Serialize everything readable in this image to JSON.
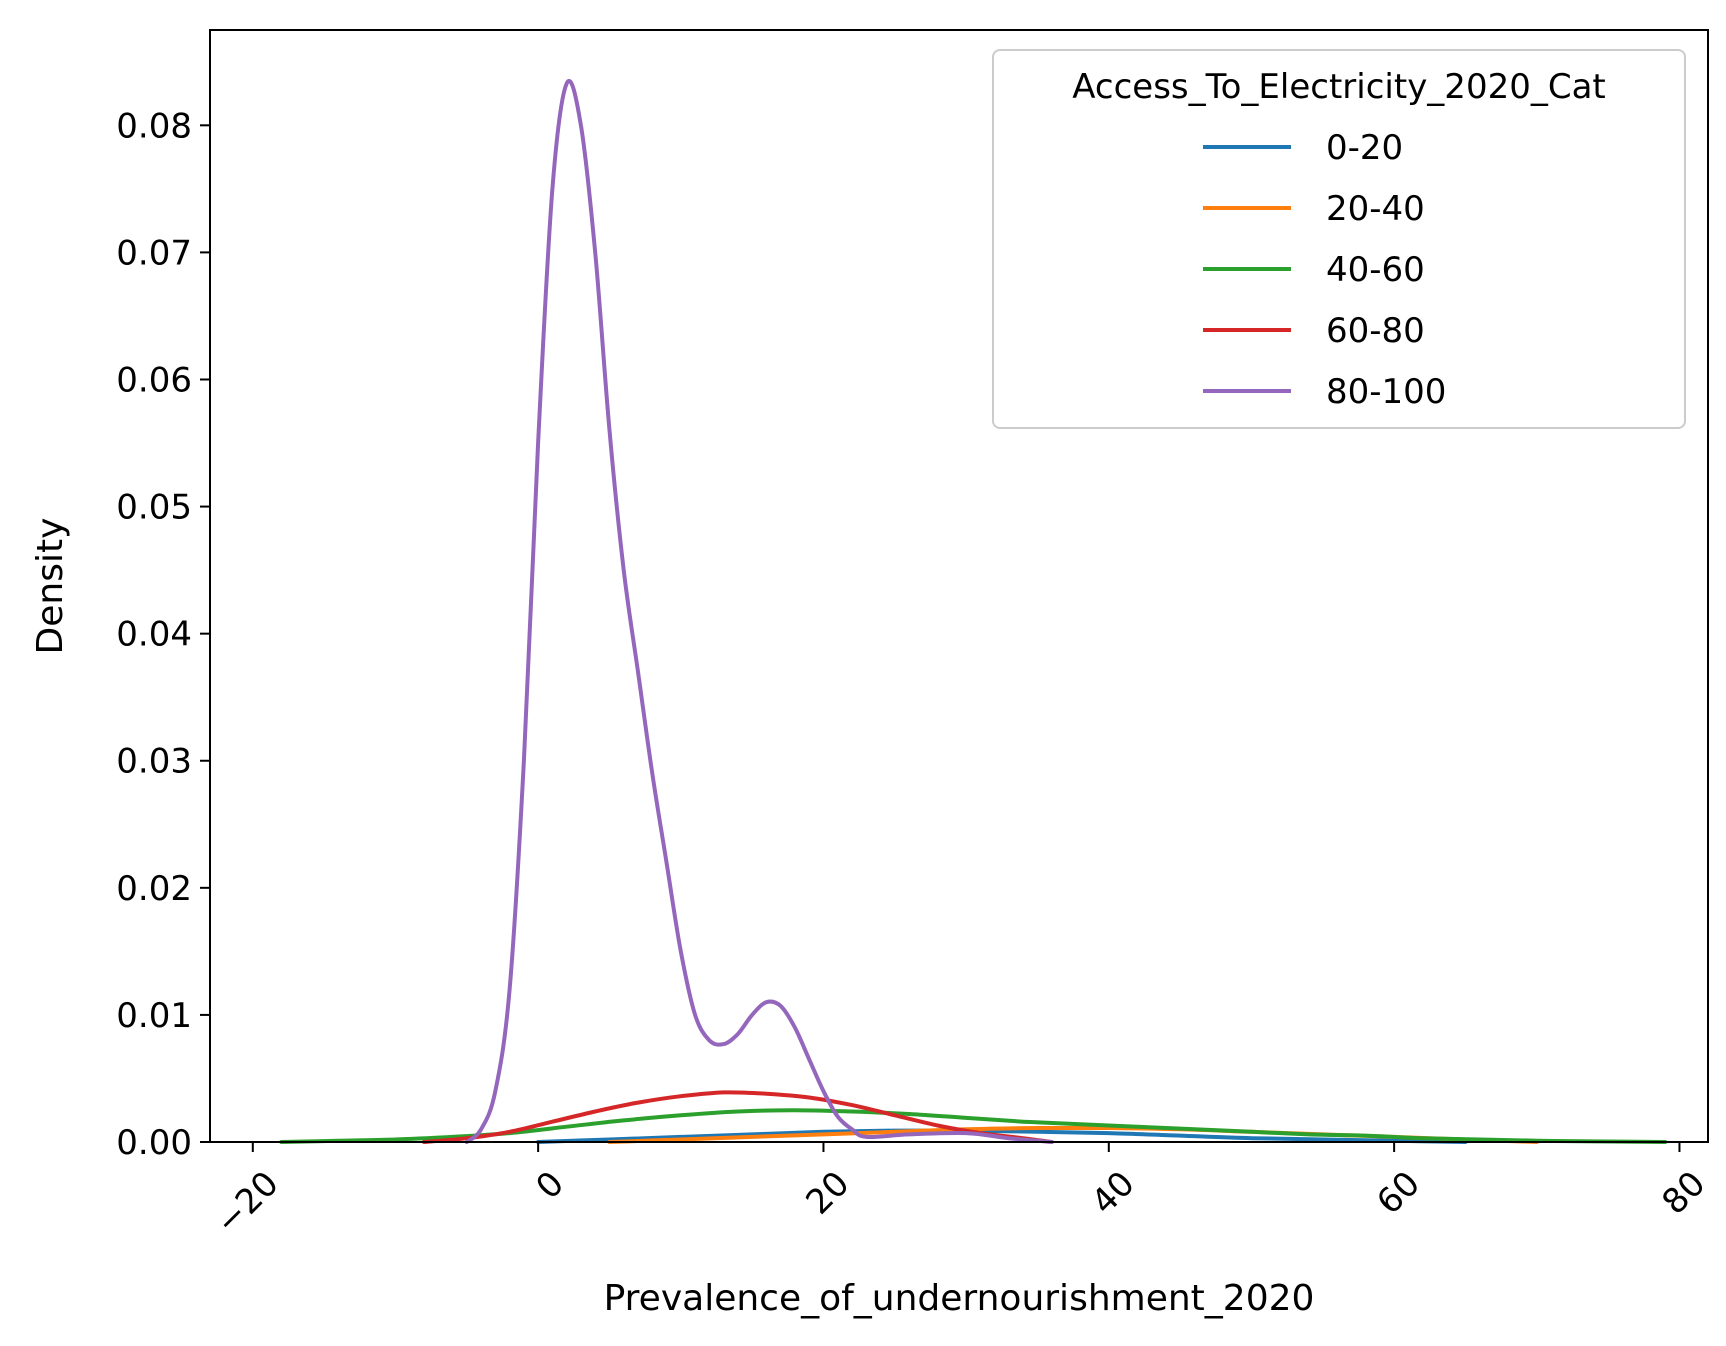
{
  "chart_data": {
    "type": "line",
    "subtype": "kde",
    "title": "",
    "xlabel": "Prevalence_of_undernourishment_2020",
    "ylabel": "Density",
    "xlim": [
      -23,
      82
    ],
    "ylim": [
      0,
      0.0875
    ],
    "xticks": [
      -20,
      0,
      20,
      40,
      60,
      80
    ],
    "xtick_labels": [
      "−20",
      "0",
      "20",
      "40",
      "60",
      "80"
    ],
    "xtick_rotation": -45,
    "yticks": [
      0,
      0.01,
      0.02,
      0.03,
      0.04,
      0.05,
      0.06,
      0.07,
      0.08
    ],
    "ytick_labels": [
      "0.00",
      "0.01",
      "0.02",
      "0.03",
      "0.04",
      "0.05",
      "0.06",
      "0.07",
      "0.08"
    ],
    "grid": false,
    "legend": {
      "title": "Access_To_Electricity_2020_Cat",
      "placement": "top-right"
    },
    "series": [
      {
        "name": "0-20",
        "color": "#1f77b4",
        "points": [
          [
            0,
            0
          ],
          [
            5,
            0.0002
          ],
          [
            10,
            0.0004
          ],
          [
            15,
            0.0006
          ],
          [
            20,
            0.0008
          ],
          [
            25,
            0.0009
          ],
          [
            30,
            0.0009
          ],
          [
            35,
            0.0008
          ],
          [
            40,
            0.0007
          ],
          [
            45,
            0.0005
          ],
          [
            50,
            0.0003
          ],
          [
            55,
            0.0002
          ],
          [
            60,
            0.0001
          ],
          [
            65,
            0
          ]
        ]
      },
      {
        "name": "20-40",
        "color": "#ff7f0e",
        "points": [
          [
            5,
            0
          ],
          [
            10,
            0.0002
          ],
          [
            15,
            0.0004
          ],
          [
            20,
            0.0006
          ],
          [
            25,
            0.0008
          ],
          [
            30,
            0.001
          ],
          [
            35,
            0.0011
          ],
          [
            40,
            0.0011
          ],
          [
            45,
            0.001
          ],
          [
            50,
            0.0008
          ],
          [
            55,
            0.0006
          ],
          [
            60,
            0.0004
          ],
          [
            65,
            0.0002
          ],
          [
            70,
            0
          ]
        ]
      },
      {
        "name": "40-60",
        "color": "#2ca02c",
        "points": [
          [
            -18,
            0
          ],
          [
            -14,
            0.0001
          ],
          [
            -10,
            0.0002
          ],
          [
            -6,
            0.0004
          ],
          [
            -2,
            0.0007
          ],
          [
            2,
            0.0012
          ],
          [
            6,
            0.0017
          ],
          [
            10,
            0.0021
          ],
          [
            14,
            0.0024
          ],
          [
            18,
            0.0025
          ],
          [
            22,
            0.0024
          ],
          [
            26,
            0.0022
          ],
          [
            30,
            0.0019
          ],
          [
            34,
            0.0016
          ],
          [
            38,
            0.0014
          ],
          [
            42,
            0.0012
          ],
          [
            46,
            0.001
          ],
          [
            50,
            0.0008
          ],
          [
            54,
            0.0006
          ],
          [
            58,
            0.0005
          ],
          [
            62,
            0.0003
          ],
          [
            66,
            0.0002
          ],
          [
            70,
            0.0001
          ],
          [
            74,
            5e-05
          ],
          [
            79,
            0
          ]
        ]
      },
      {
        "name": "60-80",
        "color": "#d62728",
        "points": [
          [
            -8,
            0
          ],
          [
            -5,
            0.0003
          ],
          [
            -2,
            0.0008
          ],
          [
            1,
            0.0016
          ],
          [
            4,
            0.0024
          ],
          [
            7,
            0.0031
          ],
          [
            10,
            0.0036
          ],
          [
            13,
            0.0039
          ],
          [
            16,
            0.0038
          ],
          [
            19,
            0.0035
          ],
          [
            22,
            0.0029
          ],
          [
            25,
            0.0021
          ],
          [
            28,
            0.0013
          ],
          [
            31,
            0.0007
          ],
          [
            34,
            0.0003
          ],
          [
            36,
            0
          ]
        ]
      },
      {
        "name": "80-100",
        "color": "#9467bd",
        "points": [
          [
            -5,
            0
          ],
          [
            -4,
            0.001
          ],
          [
            -3,
            0.004
          ],
          [
            -2,
            0.012
          ],
          [
            -1,
            0.03
          ],
          [
            0,
            0.055
          ],
          [
            1,
            0.075
          ],
          [
            2,
            0.0833
          ],
          [
            3,
            0.08
          ],
          [
            4,
            0.07
          ],
          [
            5,
            0.056
          ],
          [
            6,
            0.045
          ],
          [
            7,
            0.037
          ],
          [
            8,
            0.029
          ],
          [
            9,
            0.022
          ],
          [
            10,
            0.015
          ],
          [
            11,
            0.01
          ],
          [
            12,
            0.008
          ],
          [
            13,
            0.0077
          ],
          [
            14,
            0.0085
          ],
          [
            15,
            0.01
          ],
          [
            16,
            0.011
          ],
          [
            17,
            0.0107
          ],
          [
            18,
            0.009
          ],
          [
            19,
            0.0065
          ],
          [
            20,
            0.004
          ],
          [
            21,
            0.002
          ],
          [
            22,
            0.001
          ],
          [
            23,
            0.0004
          ],
          [
            26,
            0.0006
          ],
          [
            30,
            0.0007
          ],
          [
            33,
            0.0003
          ],
          [
            36,
            0
          ]
        ]
      }
    ]
  }
}
